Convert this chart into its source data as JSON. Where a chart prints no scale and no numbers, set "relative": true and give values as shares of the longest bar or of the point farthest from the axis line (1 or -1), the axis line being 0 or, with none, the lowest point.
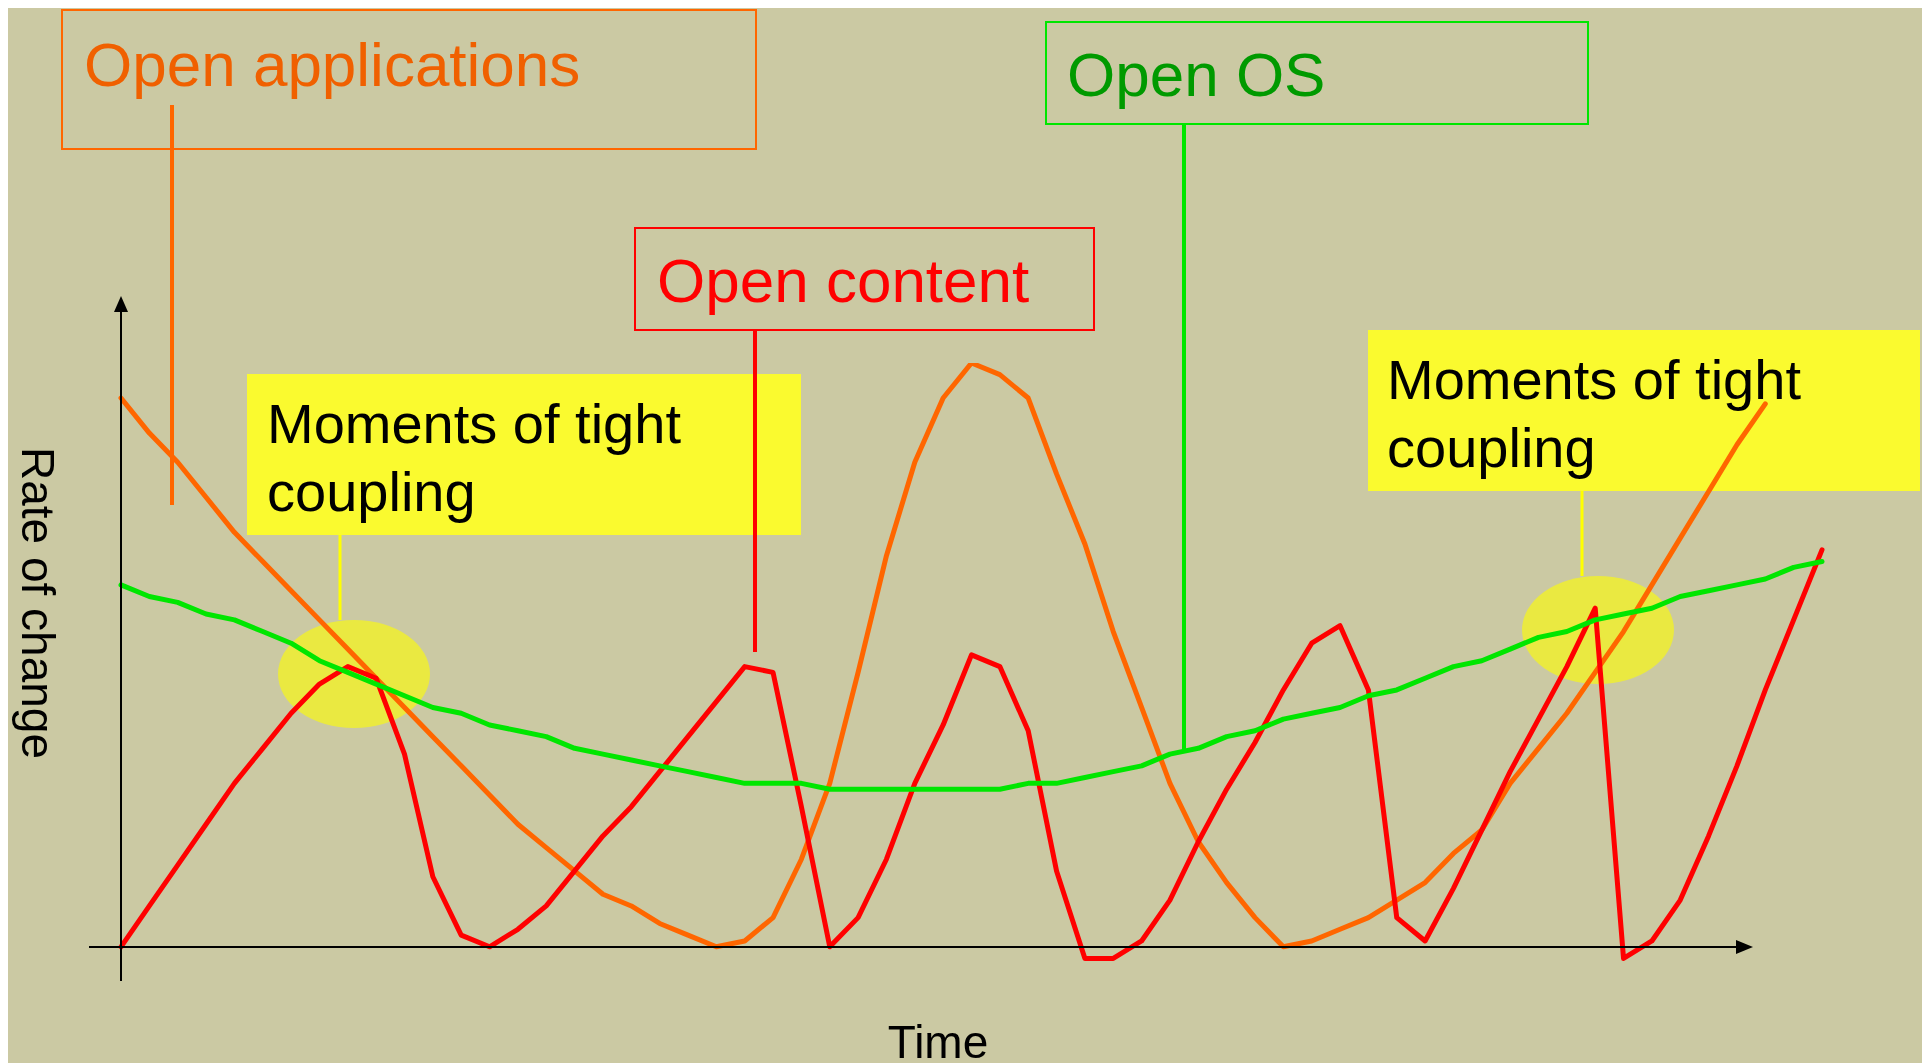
{
  "chart_data": {
    "type": "line",
    "relative": true,
    "xlabel": "Time",
    "ylabel": "Rate of change",
    "tick_labels": false,
    "categories": [
      null,
      null,
      null,
      null,
      null,
      null,
      null,
      null,
      null,
      null,
      null,
      null,
      null,
      null,
      null,
      null,
      null,
      null,
      null,
      null,
      null,
      null,
      null,
      null,
      null,
      null,
      null,
      null,
      null,
      null,
      null,
      null,
      null,
      null,
      null,
      null,
      null,
      null,
      null,
      null,
      null,
      null,
      null,
      null,
      null,
      null,
      null,
      null,
      null,
      null,
      null,
      null,
      null,
      null,
      null,
      null,
      null,
      null,
      null,
      null,
      null
    ],
    "series": [
      {
        "name": "Open applications",
        "color": "#ff6600",
        "values": [
          0.94,
          0.88,
          0.83,
          0.77,
          0.71,
          0.66,
          0.61,
          0.56,
          0.51,
          0.46,
          0.41,
          0.36,
          0.31,
          0.26,
          0.21,
          0.17,
          0.13,
          0.09,
          0.07,
          0.04,
          0.02,
          0,
          0.01,
          0.05,
          0.15,
          0.28,
          0.47,
          0.67,
          0.83,
          0.94,
          1,
          0.98,
          0.94,
          0.81,
          0.69,
          0.54,
          0.41,
          0.28,
          0.18,
          0.11,
          0.05,
          0,
          0.01,
          0.03,
          0.05,
          0.08,
          0.11,
          0.16,
          0.2,
          0.28,
          0.34,
          0.4,
          0.47,
          0.54,
          0.62,
          0.7,
          0.78,
          0.86,
          0.93,
          null,
          null
        ]
      },
      {
        "name": "Open content",
        "color": "#ff0000",
        "values": [
          0,
          0.07,
          0.14,
          0.21,
          0.28,
          0.34,
          0.4,
          0.45,
          0.48,
          0.46,
          0.33,
          0.12,
          0.02,
          0,
          0.03,
          0.07,
          0.13,
          0.19,
          0.24,
          0.3,
          0.36,
          0.42,
          0.48,
          0.47,
          0.24,
          0,
          0.05,
          0.15,
          0.28,
          0.38,
          0.5,
          0.48,
          0.37,
          0.13,
          -0.02,
          -0.02,
          0.01,
          0.08,
          0.18,
          0.27,
          0.35,
          0.44,
          0.52,
          0.55,
          0.44,
          0.05,
          0.01,
          0.1,
          0.2,
          0.3,
          0.39,
          0.48,
          0.58,
          -0.02,
          0.01,
          0.08,
          0.19,
          0.31,
          0.44,
          0.56,
          0.68
        ]
      },
      {
        "name": "Open OS",
        "color": "#00e600",
        "values": [
          0.62,
          0.6,
          0.59,
          0.57,
          0.56,
          0.54,
          0.52,
          0.49,
          0.47,
          0.45,
          0.43,
          0.41,
          0.4,
          0.38,
          0.37,
          0.36,
          0.34,
          0.33,
          0.32,
          0.31,
          0.3,
          0.29,
          0.28,
          0.28,
          0.28,
          0.27,
          0.27,
          0.27,
          0.27,
          0.27,
          0.27,
          0.27,
          0.28,
          0.28,
          0.29,
          0.3,
          0.31,
          0.33,
          0.34,
          0.36,
          0.37,
          0.39,
          0.4,
          0.41,
          0.43,
          0.44,
          0.46,
          0.48,
          0.49,
          0.51,
          0.53,
          0.54,
          0.56,
          0.57,
          0.58,
          0.6,
          0.61,
          0.62,
          0.63,
          0.65,
          0.66
        ]
      }
    ],
    "annotations": [
      "Moments of tight coupling",
      "Moments of tight coupling"
    ]
  }
}
